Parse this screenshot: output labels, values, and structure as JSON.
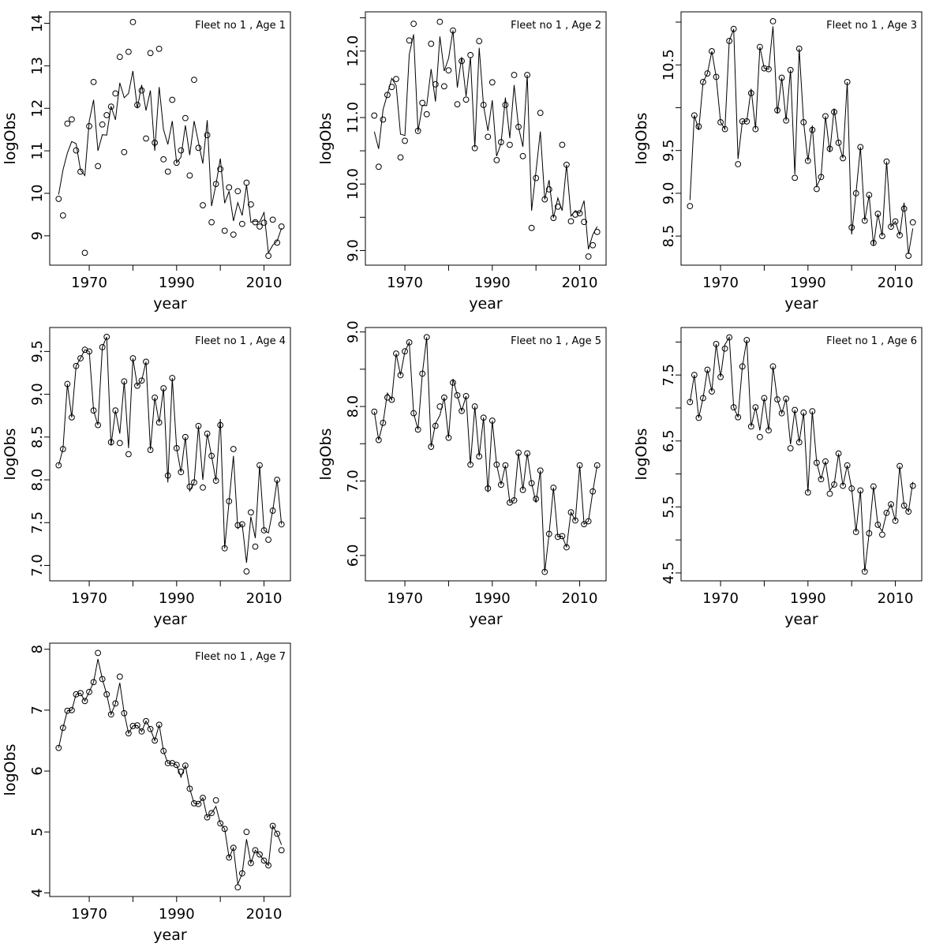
{
  "colors": {
    "line": "#000000",
    "point": "#000000",
    "background": "#ffffff"
  },
  "chart_data": [
    {
      "type": "line",
      "title": "Fleet no 1 , Age 1",
      "xlabel": "year",
      "ylabel": "logObs",
      "xlim": [
        1960.96,
        2016.04
      ],
      "ylim": [
        8.31,
        14.27
      ],
      "xticks": [
        1970,
        1980,
        1990,
        2000,
        2010
      ],
      "xtick_labels": [
        "1970",
        "",
        "1990",
        "",
        "2010"
      ],
      "yticks": [
        9,
        10,
        11,
        12,
        13,
        14
      ],
      "ytick_labels": [
        "9",
        "10",
        "11",
        "12",
        "13",
        "14"
      ],
      "observed": [
        9.87,
        9.48,
        11.64,
        11.74,
        11.01,
        10.51,
        8.6,
        11.58,
        12.62,
        10.64,
        11.62,
        11.84,
        12.04,
        12.35,
        13.21,
        10.97,
        13.33,
        14.03,
        12.08,
        12.42,
        11.29,
        13.3,
        11.19,
        13.4,
        10.8,
        10.51,
        12.2,
        10.72,
        11.01,
        11.77,
        10.42,
        12.67,
        11.07,
        9.72,
        11.37,
        9.32,
        10.22,
        10.57,
        9.12,
        10.14,
        9.03,
        10.05,
        9.28,
        10.25,
        9.74,
        9.32,
        9.22,
        9.31,
        8.53,
        9.38,
        8.84,
        9.22
      ],
      "fitted": [
        9.97,
        10.55,
        10.95,
        11.22,
        11.17,
        10.55,
        10.42,
        11.7,
        12.2,
        11.0,
        11.38,
        11.37,
        12.05,
        11.73,
        12.6,
        12.25,
        12.35,
        12.88,
        12.0,
        12.55,
        11.95,
        12.42,
        11.0,
        12.5,
        11.5,
        11.15,
        11.7,
        10.72,
        10.85,
        11.6,
        10.9,
        11.7,
        11.2,
        10.7,
        11.72,
        9.7,
        10.2,
        10.82,
        9.77,
        10.05,
        9.35,
        9.78,
        9.48,
        10.2,
        9.32,
        9.35,
        9.32,
        9.55,
        8.6,
        8.78,
        8.88,
        9.18
      ]
    },
    {
      "type": "line",
      "title": "Fleet no 1 , Age 2",
      "xlabel": "year",
      "ylabel": "logObs",
      "xlim": [
        1960.96,
        2016.04
      ],
      "ylim": [
        8.78,
        12.59
      ],
      "xticks": [
        1970,
        1980,
        1990,
        2000,
        2010
      ],
      "xtick_labels": [
        "1970",
        "",
        "1990",
        "",
        "2010"
      ],
      "yticks": [
        9.0,
        9.5,
        10.0,
        10.5,
        11.0,
        11.5,
        12.0,
        12.5
      ],
      "ytick_labels": [
        "9.0",
        "",
        "10.0",
        "",
        "11.0",
        "",
        "12.0",
        ""
      ],
      "observed": [
        11.03,
        10.26,
        10.97,
        11.34,
        11.46,
        11.58,
        10.4,
        10.65,
        12.16,
        12.41,
        10.8,
        11.22,
        11.05,
        12.11,
        11.5,
        12.44,
        11.47,
        11.71,
        12.31,
        11.2,
        11.85,
        11.27,
        11.94,
        10.54,
        12.15,
        11.19,
        10.71,
        11.53,
        10.36,
        10.63,
        11.19,
        10.59,
        11.64,
        10.86,
        10.42,
        11.64,
        9.34,
        10.09,
        11.07,
        9.77,
        9.92,
        9.49,
        9.66,
        10.59,
        10.29,
        9.44,
        9.54,
        9.56,
        9.43,
        8.91,
        9.08,
        9.28
      ],
      "fitted": [
        10.79,
        10.53,
        11.12,
        11.35,
        11.59,
        11.48,
        10.75,
        10.73,
        11.95,
        12.25,
        10.79,
        11.18,
        11.18,
        11.73,
        11.24,
        12.22,
        11.7,
        11.89,
        12.31,
        11.45,
        11.91,
        11.32,
        11.91,
        10.55,
        12.05,
        11.18,
        10.8,
        11.26,
        10.42,
        10.61,
        11.3,
        10.69,
        11.49,
        10.86,
        10.56,
        11.64,
        9.6,
        10.19,
        10.79,
        9.77,
        10.06,
        9.49,
        9.79,
        9.6,
        10.29,
        9.52,
        9.6,
        9.56,
        9.75,
        9.02,
        9.24,
        9.36
      ]
    },
    {
      "type": "line",
      "title": "Fleet no 1 , Age 3",
      "xlabel": "year",
      "ylabel": "logObs",
      "xlim": [
        1960.96,
        2016.04
      ],
      "ylim": [
        8.16,
        11.12
      ],
      "xticks": [
        1970,
        1980,
        1990,
        2000,
        2010
      ],
      "xtick_labels": [
        "1970",
        "",
        "1990",
        "",
        "2010"
      ],
      "yticks": [
        8.5,
        9.0,
        9.5,
        10.0,
        10.5,
        11.0
      ],
      "ytick_labels": [
        "8.5",
        "9.0",
        "9.5",
        "",
        "10.5",
        ""
      ],
      "observed": [
        8.85,
        9.91,
        9.78,
        10.3,
        10.4,
        10.66,
        10.36,
        9.83,
        9.75,
        10.78,
        10.92,
        9.34,
        9.84,
        9.84,
        10.17,
        9.75,
        10.71,
        10.46,
        10.45,
        11.01,
        9.97,
        10.35,
        9.85,
        10.44,
        9.18,
        10.69,
        9.83,
        9.38,
        9.74,
        9.05,
        9.19,
        9.9,
        9.52,
        9.95,
        9.59,
        9.41,
        10.3,
        8.6,
        9.0,
        9.54,
        8.68,
        8.98,
        8.42,
        8.76,
        8.5,
        9.37,
        8.61,
        8.67,
        8.51,
        8.82,
        8.27,
        8.66
      ],
      "fitted": [
        8.92,
        9.91,
        9.74,
        10.3,
        10.4,
        10.66,
        10.36,
        9.83,
        9.75,
        10.78,
        10.92,
        9.4,
        9.84,
        9.84,
        10.22,
        9.75,
        10.71,
        10.46,
        10.45,
        10.95,
        9.93,
        10.35,
        9.85,
        10.44,
        9.22,
        10.69,
        9.83,
        9.38,
        9.79,
        9.08,
        9.19,
        9.9,
        9.48,
        9.99,
        9.59,
        9.41,
        10.3,
        8.52,
        9.0,
        9.54,
        8.68,
        8.98,
        8.39,
        8.76,
        8.5,
        9.37,
        8.61,
        8.67,
        8.51,
        8.89,
        8.29,
        8.59
      ]
    },
    {
      "type": "line",
      "title": "Fleet no 1 , Age 4",
      "xlabel": "year",
      "ylabel": "logObs",
      "xlim": [
        1960.96,
        2016.04
      ],
      "ylim": [
        6.82,
        9.78
      ],
      "xticks": [
        1970,
        1980,
        1990,
        2000,
        2010
      ],
      "xtick_labels": [
        "1970",
        "",
        "1990",
        "",
        "2010"
      ],
      "yticks": [
        7.0,
        7.5,
        8.0,
        8.5,
        9.0,
        9.5
      ],
      "ytick_labels": [
        "7.0",
        "7.5",
        "8.0",
        "8.5",
        "9.0",
        "9.5"
      ],
      "observed": [
        8.17,
        8.36,
        9.12,
        8.73,
        9.33,
        9.42,
        9.52,
        9.5,
        8.81,
        8.64,
        9.55,
        9.67,
        8.44,
        8.81,
        8.43,
        9.15,
        8.3,
        9.42,
        9.1,
        9.16,
        9.38,
        8.35,
        8.96,
        8.67,
        9.07,
        8.05,
        9.19,
        8.37,
        8.09,
        8.5,
        7.92,
        7.97,
        8.63,
        7.91,
        8.54,
        8.28,
        7.99,
        8.64,
        7.2,
        7.75,
        8.36,
        7.47,
        7.48,
        6.93,
        7.62,
        7.22,
        8.17,
        7.41,
        7.3,
        7.64,
        8.0,
        7.48
      ],
      "fitted": [
        8.17,
        8.36,
        9.12,
        8.73,
        9.33,
        9.42,
        9.52,
        9.5,
        8.81,
        8.64,
        9.55,
        9.67,
        8.4,
        8.81,
        8.54,
        9.15,
        8.37,
        9.42,
        9.1,
        9.16,
        9.38,
        8.35,
        8.96,
        8.67,
        9.07,
        7.97,
        9.19,
        8.37,
        8.09,
        8.5,
        7.87,
        7.97,
        8.63,
        8.0,
        8.54,
        8.28,
        7.99,
        8.71,
        7.2,
        7.75,
        8.28,
        7.43,
        7.48,
        7.03,
        7.57,
        7.32,
        8.17,
        7.41,
        7.38,
        7.64,
        8.0,
        7.48
      ]
    },
    {
      "type": "line",
      "title": "Fleet no 1 , Age 5",
      "xlabel": "year",
      "ylabel": "logObs",
      "xlim": [
        1960.96,
        2016.04
      ],
      "ylim": [
        5.66,
        9.06
      ],
      "xticks": [
        1970,
        1980,
        1990,
        2000,
        2010
      ],
      "xtick_labels": [
        "1970",
        "",
        "1990",
        "",
        "2010"
      ],
      "yticks": [
        6.0,
        6.5,
        7.0,
        7.5,
        8.0,
        8.5,
        9.0
      ],
      "ytick_labels": [
        "6.0",
        "",
        "7.0",
        "",
        "8.0",
        "",
        "9.0"
      ],
      "observed": [
        7.93,
        7.55,
        7.78,
        8.12,
        8.09,
        8.71,
        8.42,
        8.74,
        8.86,
        7.91,
        7.69,
        8.44,
        8.93,
        7.46,
        7.74,
        8.0,
        8.12,
        7.58,
        8.32,
        8.15,
        7.94,
        8.14,
        7.22,
        8.0,
        7.33,
        7.85,
        6.9,
        7.81,
        7.22,
        6.95,
        7.21,
        6.71,
        6.74,
        7.38,
        6.88,
        7.37,
        6.97,
        6.76,
        7.14,
        5.78,
        6.29,
        6.91,
        6.25,
        6.26,
        6.11,
        6.58,
        6.47,
        7.21,
        6.42,
        6.46,
        6.86,
        7.21
      ],
      "fitted": [
        7.93,
        7.55,
        7.78,
        8.18,
        8.09,
        8.71,
        8.42,
        8.74,
        8.86,
        7.91,
        7.69,
        8.44,
        8.93,
        7.46,
        7.77,
        7.88,
        8.12,
        7.58,
        8.37,
        8.15,
        7.94,
        8.14,
        7.22,
        8.0,
        7.33,
        7.85,
        6.85,
        7.81,
        7.22,
        6.95,
        7.21,
        6.71,
        6.74,
        7.38,
        6.88,
        7.37,
        6.97,
        6.71,
        7.14,
        5.78,
        6.29,
        6.91,
        6.25,
        6.26,
        6.11,
        6.58,
        6.47,
        7.21,
        6.42,
        6.46,
        6.86,
        7.21
      ]
    },
    {
      "type": "line",
      "title": "Fleet no 1 , Age 6",
      "xlabel": "year",
      "ylabel": "logObs",
      "xlim": [
        1960.96,
        2016.04
      ],
      "ylim": [
        4.38,
        8.22
      ],
      "xticks": [
        1970,
        1980,
        1990,
        2000,
        2010
      ],
      "xtick_labels": [
        "1970",
        "",
        "1990",
        "",
        "2010"
      ],
      "yticks": [
        4.5,
        5.0,
        5.5,
        6.0,
        6.5,
        7.0,
        7.5,
        8.0
      ],
      "ytick_labels": [
        "4.5",
        "",
        "5.5",
        "",
        "6.5",
        "",
        "7.5",
        ""
      ],
      "observed": [
        7.09,
        7.5,
        6.85,
        7.15,
        7.58,
        7.25,
        7.97,
        7.47,
        7.9,
        8.07,
        7.01,
        6.86,
        7.63,
        8.03,
        6.72,
        7.01,
        6.56,
        7.15,
        6.66,
        7.63,
        7.13,
        6.92,
        7.14,
        6.39,
        6.97,
        6.48,
        6.93,
        5.72,
        6.95,
        6.17,
        5.92,
        6.19,
        5.7,
        5.84,
        6.31,
        5.82,
        6.13,
        5.78,
        5.12,
        5.75,
        4.52,
        5.1,
        5.81,
        5.23,
        5.08,
        5.41,
        5.54,
        5.29,
        6.12,
        5.52,
        5.43,
        5.82
      ],
      "fitted": [
        7.09,
        7.5,
        6.85,
        7.15,
        7.58,
        7.25,
        7.97,
        7.47,
        7.96,
        8.07,
        7.01,
        6.86,
        7.63,
        8.03,
        6.72,
        7.01,
        6.66,
        7.15,
        6.66,
        7.63,
        7.13,
        6.92,
        7.14,
        6.45,
        6.97,
        6.48,
        6.93,
        5.72,
        6.95,
        6.17,
        5.92,
        6.19,
        5.75,
        5.84,
        6.31,
        5.82,
        6.13,
        5.78,
        5.12,
        5.75,
        4.52,
        5.1,
        5.81,
        5.23,
        5.13,
        5.41,
        5.54,
        5.29,
        6.12,
        5.52,
        5.43,
        5.88
      ]
    },
    {
      "type": "line",
      "title": "Fleet no 1 , Age 7",
      "xlabel": "year",
      "ylabel": "logObs",
      "xlim": [
        1960.96,
        2016.04
      ],
      "ylim": [
        3.94,
        8.1
      ],
      "xticks": [
        1970,
        1980,
        1990,
        2000,
        2010
      ],
      "xtick_labels": [
        "1970",
        "",
        "1990",
        "",
        "2010"
      ],
      "yticks": [
        4,
        5,
        6,
        7,
        8
      ],
      "ytick_labels": [
        "4",
        "5",
        "6",
        "7",
        "8"
      ],
      "observed": [
        6.38,
        6.71,
        6.99,
        7.0,
        7.26,
        7.28,
        7.15,
        7.3,
        7.46,
        7.94,
        7.51,
        7.26,
        6.93,
        7.11,
        7.55,
        6.95,
        6.62,
        6.74,
        6.75,
        6.65,
        6.82,
        6.69,
        6.5,
        6.76,
        6.33,
        6.13,
        6.13,
        6.1,
        5.99,
        6.09,
        5.71,
        5.47,
        5.46,
        5.56,
        5.24,
        5.31,
        5.52,
        5.14,
        5.05,
        4.58,
        4.74,
        4.09,
        4.32,
        5.0,
        4.49,
        4.7,
        4.63,
        4.53,
        4.45,
        5.1,
        4.97,
        4.7
      ],
      "fitted": [
        6.38,
        6.71,
        6.99,
        7.0,
        7.26,
        7.28,
        7.15,
        7.3,
        7.46,
        7.84,
        7.51,
        7.26,
        6.93,
        7.11,
        7.45,
        6.95,
        6.62,
        6.74,
        6.75,
        6.65,
        6.82,
        6.69,
        6.5,
        6.76,
        6.33,
        6.13,
        6.13,
        6.1,
        5.9,
        6.09,
        5.71,
        5.47,
        5.46,
        5.56,
        5.24,
        5.31,
        5.42,
        5.14,
        5.05,
        4.58,
        4.74,
        4.14,
        4.32,
        4.88,
        4.49,
        4.7,
        4.63,
        4.53,
        4.45,
        5.1,
        4.97,
        4.79
      ]
    }
  ],
  "x_start_year": 1963,
  "x_end_year": 2014
}
